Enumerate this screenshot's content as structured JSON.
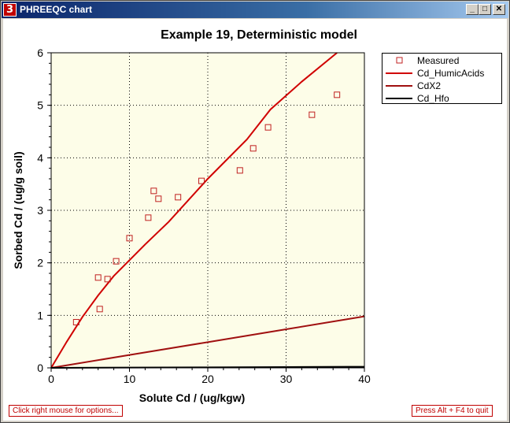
{
  "window": {
    "title": "PHREEQC chart",
    "icon_glyph": "3",
    "minimize_glyph": "_",
    "maximize_glyph": "□",
    "close_glyph": "✕"
  },
  "status": {
    "left_hint": "Click right mouse for options...",
    "right_hint": "Press Alt + F4 to quit"
  },
  "colors": {
    "plot_bg": "#fdfde8",
    "measured": "#c02020",
    "humic": "#d00000",
    "cdx2": "#a01010",
    "hfo": "#000000"
  },
  "chart_data": {
    "type": "scatter",
    "title": "Example 19, Deterministic model",
    "xlabel": "Solute Cd / (ug/kgw)",
    "ylabel": "Sorbed Cd / (ug/g soil)",
    "xlim": [
      0,
      40
    ],
    "ylim": [
      0,
      6
    ],
    "xticks": [
      0,
      10,
      20,
      30,
      40
    ],
    "yticks": [
      0,
      1,
      2,
      3,
      4,
      5,
      6
    ],
    "grid": true,
    "legend_position": "top-right",
    "series": [
      {
        "name": "Measured",
        "kind": "points",
        "x": [
          3.2,
          6.0,
          6.2,
          7.2,
          8.3,
          10.0,
          12.4,
          13.1,
          13.7,
          16.2,
          19.2,
          24.1,
          25.8,
          27.7,
          33.3,
          36.5
        ],
        "y": [
          0.87,
          1.72,
          1.12,
          1.69,
          2.03,
          2.47,
          2.86,
          3.37,
          3.22,
          3.25,
          3.56,
          3.76,
          4.18,
          4.58,
          4.82,
          5.2
        ]
      },
      {
        "name": "Cd_HumicAcids",
        "kind": "line",
        "x": [
          0,
          2,
          4,
          6,
          8,
          9,
          10,
          12,
          15,
          20,
          25,
          28,
          32,
          36.5
        ],
        "y": [
          0,
          0.5,
          0.97,
          1.38,
          1.75,
          1.9,
          2.05,
          2.35,
          2.78,
          3.6,
          4.35,
          4.92,
          5.45,
          6.0
        ]
      },
      {
        "name": "CdX2",
        "kind": "line",
        "x": [
          0,
          10,
          20,
          30,
          40
        ],
        "y": [
          0,
          0.245,
          0.49,
          0.735,
          0.98
        ]
      },
      {
        "name": "Cd_Hfo",
        "kind": "line",
        "x": [
          0,
          10,
          20,
          30,
          38,
          40
        ],
        "y": [
          0,
          0.005,
          0.01,
          0.015,
          0.02,
          0.02
        ]
      }
    ]
  }
}
